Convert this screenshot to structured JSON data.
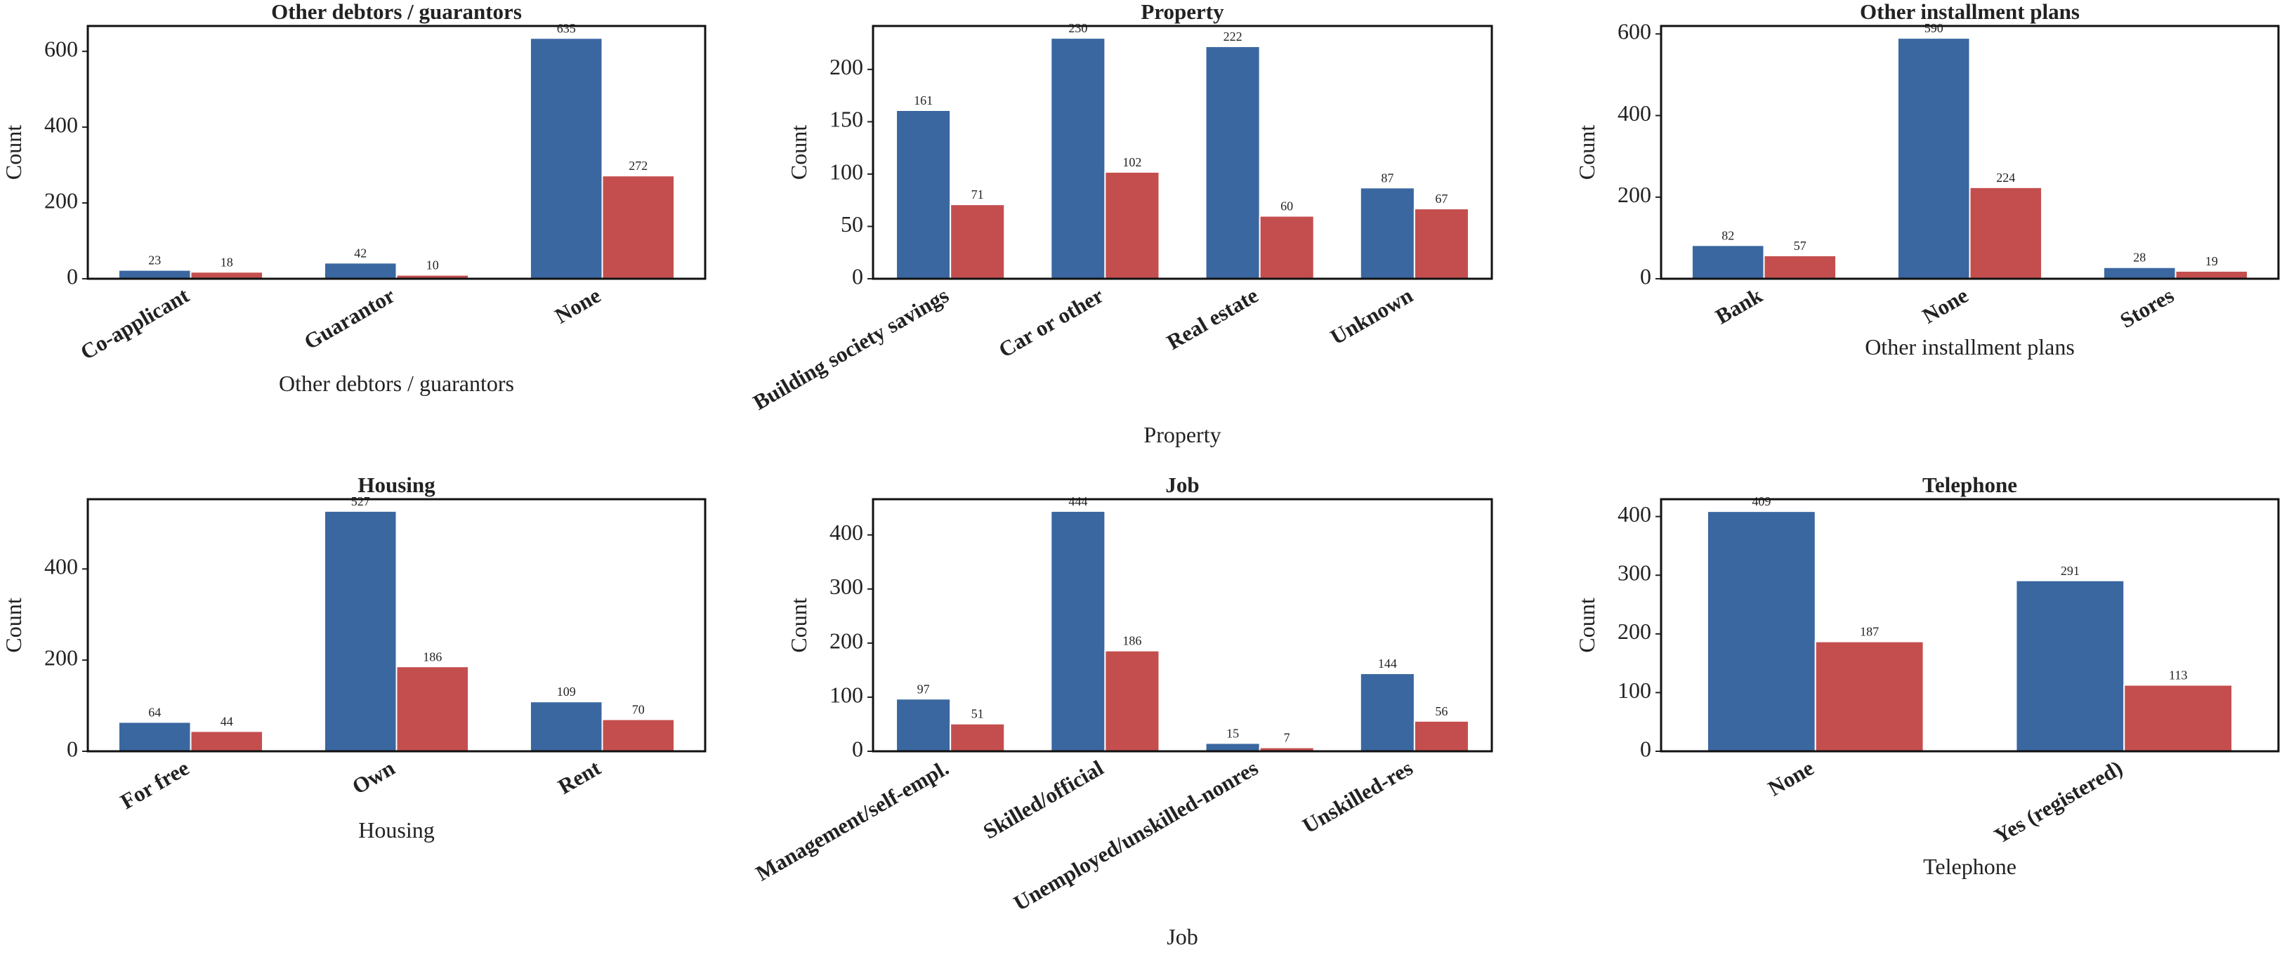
{
  "chart_data": [
    {
      "type": "bar",
      "title": "Other debtors / guarantors",
      "xlabel": "Other debtors / guarantors",
      "ylabel": "Count",
      "categories": [
        "Co-applicant",
        "Guarantor",
        "None"
      ],
      "series": [
        {
          "color": "#3a67a0",
          "values": [
            23,
            42,
            635
          ]
        },
        {
          "color": "#c44e4e",
          "values": [
            18,
            10,
            272
          ]
        }
      ],
      "ylim": [
        0,
        667
      ],
      "yticks": [
        0,
        200,
        400,
        600
      ]
    },
    {
      "type": "bar",
      "title": "Property",
      "xlabel": "Property",
      "ylabel": "Count",
      "categories": [
        "Building society savings",
        "Car or other",
        "Real estate",
        "Unknown"
      ],
      "series": [
        {
          "color": "#3a67a0",
          "values": [
            161,
            230,
            222,
            87
          ]
        },
        {
          "color": "#c44e4e",
          "values": [
            71,
            102,
            60,
            67
          ]
        }
      ],
      "ylim": [
        0,
        241.5
      ],
      "yticks": [
        0,
        50,
        100,
        150,
        200
      ]
    },
    {
      "type": "bar",
      "title": "Other installment plans",
      "xlabel": "Other installment plans",
      "ylabel": "Count",
      "categories": [
        "Bank",
        "None",
        "Stores"
      ],
      "series": [
        {
          "color": "#3a67a0",
          "values": [
            82,
            590,
            28
          ]
        },
        {
          "color": "#c44e4e",
          "values": [
            57,
            224,
            19
          ]
        }
      ],
      "ylim": [
        0,
        619.5
      ],
      "yticks": [
        0,
        200,
        400,
        600
      ]
    },
    {
      "type": "bar",
      "title": "Housing",
      "xlabel": "Housing",
      "ylabel": "Count",
      "categories": [
        "For free",
        "Own",
        "Rent"
      ],
      "series": [
        {
          "color": "#3a67a0",
          "values": [
            64,
            527,
            109
          ]
        },
        {
          "color": "#c44e4e",
          "values": [
            44,
            186,
            70
          ]
        }
      ],
      "ylim": [
        0,
        553
      ],
      "yticks": [
        0,
        200,
        400
      ]
    },
    {
      "type": "bar",
      "title": "Job",
      "xlabel": "Job",
      "ylabel": "Count",
      "categories": [
        "Management/self-empl.",
        "Skilled/official",
        "Unemployed/unskilled-nonres",
        "Unskilled-res"
      ],
      "series": [
        {
          "color": "#3a67a0",
          "values": [
            97,
            444,
            15,
            144
          ]
        },
        {
          "color": "#c44e4e",
          "values": [
            51,
            186,
            7,
            56
          ]
        }
      ],
      "ylim": [
        0,
        466
      ],
      "yticks": [
        0,
        100,
        200,
        300,
        400
      ]
    },
    {
      "type": "bar",
      "title": "Telephone",
      "xlabel": "Telephone",
      "ylabel": "Count",
      "categories": [
        "None",
        "Yes (registered)"
      ],
      "series": [
        {
          "color": "#3a67a0",
          "values": [
            409,
            291
          ]
        },
        {
          "color": "#c44e4e",
          "values": [
            187,
            113
          ]
        }
      ],
      "ylim": [
        0,
        429.5
      ],
      "yticks": [
        0,
        100,
        200,
        300,
        400
      ]
    }
  ]
}
